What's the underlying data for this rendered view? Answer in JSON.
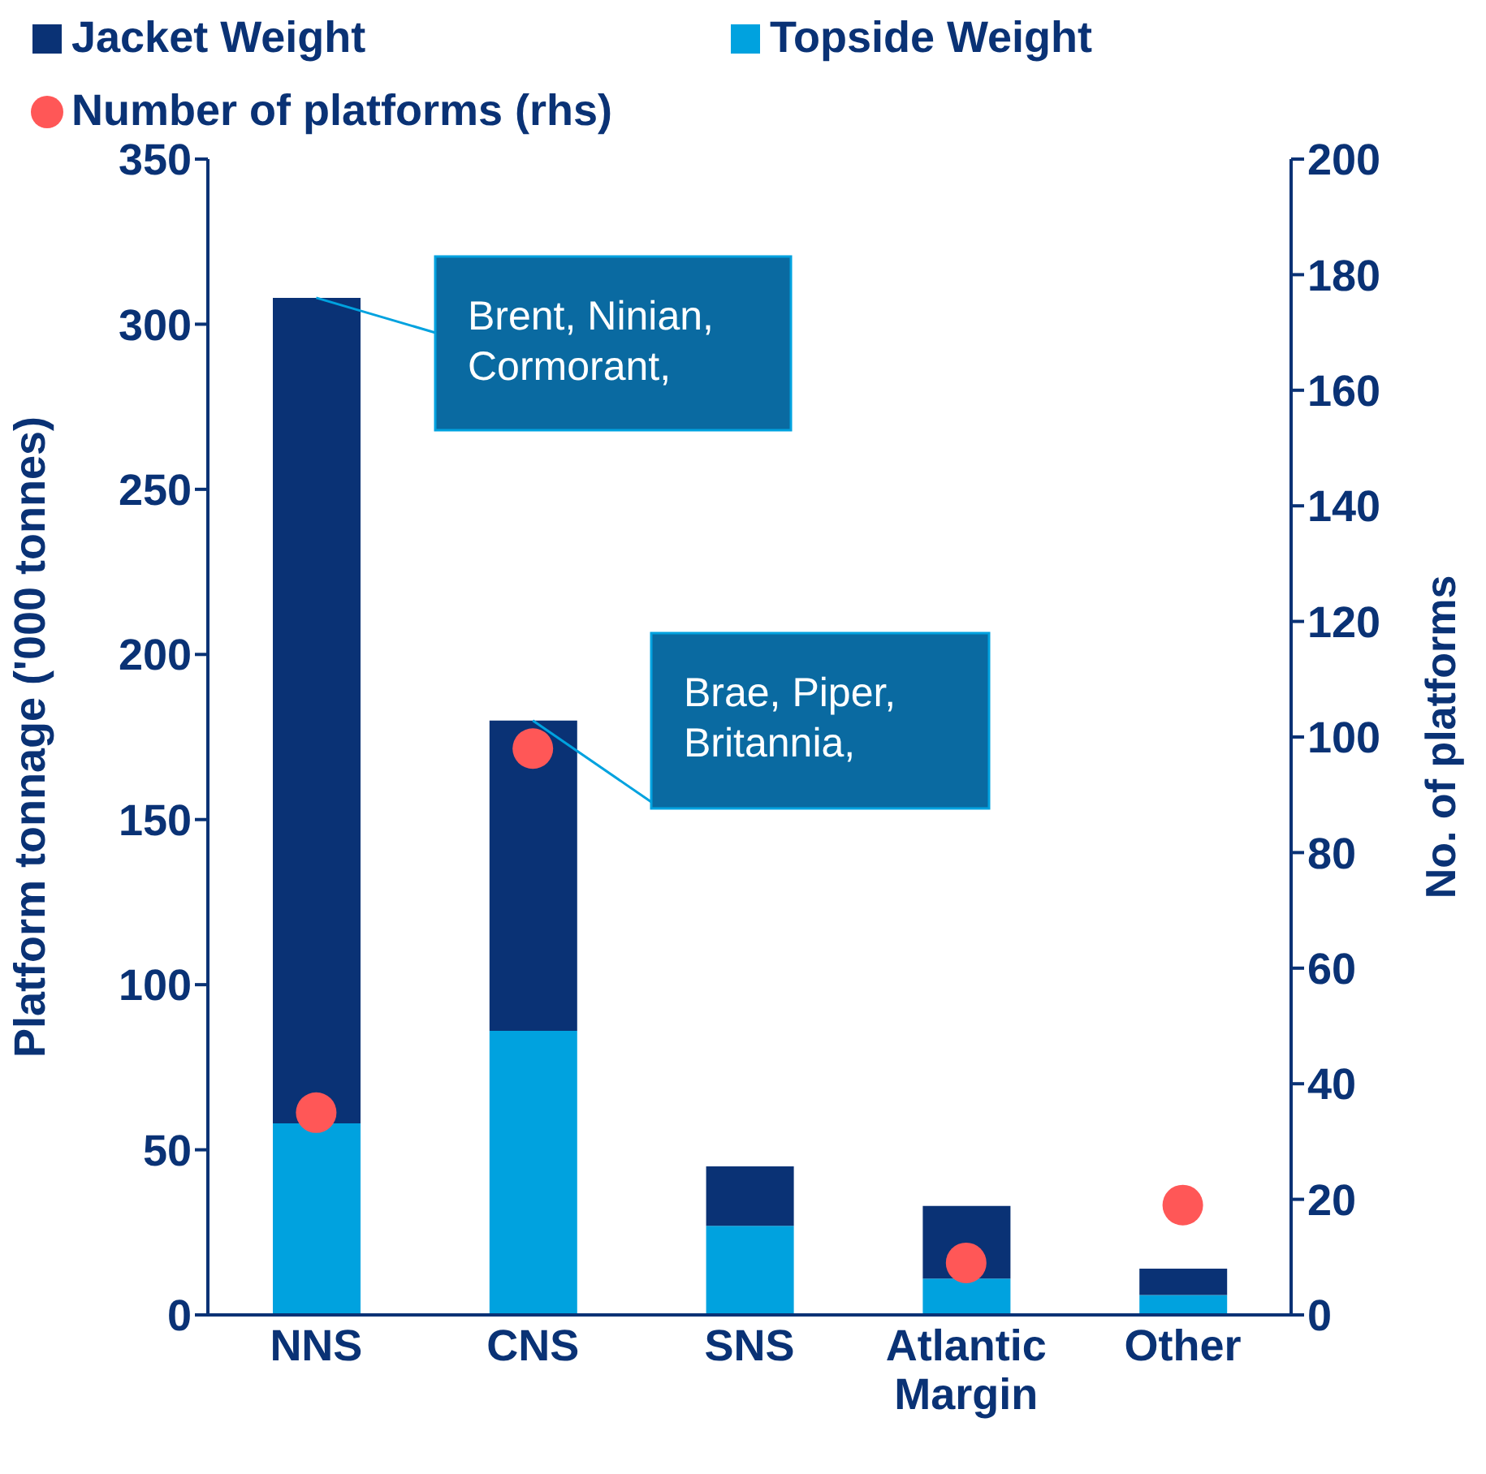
{
  "chart_data": {
    "type": "bar",
    "stacked": true,
    "categories": [
      "NNS",
      "CNS",
      "SNS",
      "Atlantic Margin",
      "Other"
    ],
    "series": [
      {
        "name": "Topside Weight",
        "color": "#00a2df",
        "values": [
          58,
          86,
          27,
          11,
          6
        ]
      },
      {
        "name": "Jacket Weight",
        "color": "#0a3275",
        "values": [
          250,
          94,
          18,
          22,
          8
        ]
      },
      {
        "name": "Number of platforms (rhs)",
        "type": "scatter",
        "axis": "y2",
        "color": "#ff5757",
        "values": [
          35,
          98,
          null,
          9,
          19
        ]
      }
    ],
    "ylabel": "Platform tonnage ('000 tonnes)",
    "y2label": "No. of platforms",
    "ylim": [
      0,
      350
    ],
    "yticks": [
      0,
      50,
      100,
      150,
      200,
      250,
      300,
      350
    ],
    "y2lim": [
      0,
      200
    ],
    "y2ticks": [
      0,
      20,
      40,
      60,
      80,
      100,
      120,
      140,
      160,
      180,
      200
    ],
    "annotations": [
      {
        "text": "Brent, Ninian, Cormorant,",
        "x": "NNS",
        "y": 308
      },
      {
        "text": "Brae, Piper, Britannia,",
        "x": "CNS",
        "y": 180
      }
    ],
    "legend": "top",
    "marker": "circle",
    "grid": false
  }
}
